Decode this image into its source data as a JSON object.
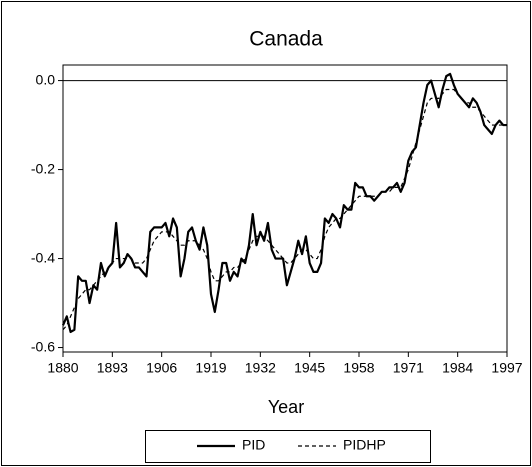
{
  "chart_data": {
    "type": "line",
    "title": "Canada",
    "x_label": "Year",
    "x": [
      1880,
      1881,
      1882,
      1883,
      1884,
      1885,
      1886,
      1887,
      1888,
      1889,
      1890,
      1891,
      1892,
      1893,
      1894,
      1895,
      1896,
      1897,
      1898,
      1899,
      1900,
      1901,
      1902,
      1903,
      1904,
      1905,
      1906,
      1907,
      1908,
      1909,
      1910,
      1911,
      1912,
      1913,
      1914,
      1915,
      1916,
      1917,
      1918,
      1919,
      1920,
      1921,
      1922,
      1923,
      1924,
      1925,
      1926,
      1927,
      1928,
      1929,
      1930,
      1931,
      1932,
      1933,
      1934,
      1935,
      1936,
      1937,
      1938,
      1939,
      1940,
      1941,
      1942,
      1943,
      1944,
      1945,
      1946,
      1947,
      1948,
      1949,
      1950,
      1951,
      1952,
      1953,
      1954,
      1955,
      1956,
      1957,
      1958,
      1959,
      1960,
      1961,
      1962,
      1963,
      1964,
      1965,
      1966,
      1967,
      1968,
      1969,
      1970,
      1971,
      1972,
      1973,
      1974,
      1975,
      1976,
      1977,
      1978,
      1979,
      1980,
      1981,
      1982,
      1983,
      1984,
      1985,
      1986,
      1987,
      1988,
      1989,
      1990,
      1991,
      1992,
      1993,
      1994,
      1995,
      1996,
      1997
    ],
    "series": [
      {
        "name": "PID",
        "color": "#000000",
        "dash": false,
        "values": [
          -0.55,
          -0.53,
          -0.565,
          -0.56,
          -0.44,
          -0.45,
          -0.45,
          -0.5,
          -0.46,
          -0.47,
          -0.41,
          -0.44,
          -0.42,
          -0.41,
          -0.32,
          -0.42,
          -0.41,
          -0.39,
          -0.4,
          -0.42,
          -0.42,
          -0.43,
          -0.44,
          -0.34,
          -0.33,
          -0.33,
          -0.33,
          -0.32,
          -0.35,
          -0.31,
          -0.33,
          -0.44,
          -0.4,
          -0.34,
          -0.33,
          -0.36,
          -0.38,
          -0.33,
          -0.37,
          -0.48,
          -0.52,
          -0.47,
          -0.41,
          -0.41,
          -0.45,
          -0.43,
          -0.44,
          -0.4,
          -0.41,
          -0.37,
          -0.3,
          -0.37,
          -0.34,
          -0.36,
          -0.32,
          -0.38,
          -0.4,
          -0.4,
          -0.4,
          -0.46,
          -0.43,
          -0.4,
          -0.36,
          -0.39,
          -0.35,
          -0.41,
          -0.43,
          -0.43,
          -0.41,
          -0.31,
          -0.32,
          -0.3,
          -0.31,
          -0.33,
          -0.28,
          -0.29,
          -0.29,
          -0.23,
          -0.24,
          -0.24,
          -0.26,
          -0.26,
          -0.27,
          -0.26,
          -0.25,
          -0.25,
          -0.24,
          -0.24,
          -0.23,
          -0.25,
          -0.23,
          -0.18,
          -0.16,
          -0.15,
          -0.1,
          -0.05,
          -0.01,
          0.0,
          -0.03,
          -0.06,
          -0.02,
          0.01,
          0.015,
          -0.01,
          -0.03,
          -0.04,
          -0.05,
          -0.06,
          -0.04,
          -0.05,
          -0.07,
          -0.1,
          -0.11,
          -0.12,
          -0.1,
          -0.09,
          -0.1,
          -0.1
        ]
      },
      {
        "name": "PIDHP",
        "color": "#000000",
        "dash": true,
        "values": [
          -0.56,
          -0.55,
          -0.53,
          -0.51,
          -0.49,
          -0.48,
          -0.47,
          -0.47,
          -0.46,
          -0.45,
          -0.44,
          -0.43,
          -0.42,
          -0.41,
          -0.4,
          -0.4,
          -0.4,
          -0.4,
          -0.4,
          -0.41,
          -0.41,
          -0.41,
          -0.4,
          -0.38,
          -0.36,
          -0.35,
          -0.34,
          -0.34,
          -0.34,
          -0.35,
          -0.36,
          -0.37,
          -0.37,
          -0.36,
          -0.36,
          -0.36,
          -0.37,
          -0.38,
          -0.4,
          -0.43,
          -0.45,
          -0.45,
          -0.44,
          -0.43,
          -0.43,
          -0.42,
          -0.42,
          -0.41,
          -0.4,
          -0.38,
          -0.36,
          -0.35,
          -0.35,
          -0.35,
          -0.36,
          -0.37,
          -0.38,
          -0.39,
          -0.4,
          -0.41,
          -0.41,
          -0.4,
          -0.39,
          -0.38,
          -0.38,
          -0.39,
          -0.4,
          -0.4,
          -0.38,
          -0.35,
          -0.33,
          -0.32,
          -0.31,
          -0.31,
          -0.3,
          -0.29,
          -0.28,
          -0.27,
          -0.26,
          -0.26,
          -0.26,
          -0.26,
          -0.26,
          -0.26,
          -0.25,
          -0.25,
          -0.25,
          -0.24,
          -0.24,
          -0.24,
          -0.22,
          -0.2,
          -0.17,
          -0.14,
          -0.11,
          -0.08,
          -0.05,
          -0.04,
          -0.04,
          -0.04,
          -0.03,
          -0.02,
          -0.02,
          -0.02,
          -0.03,
          -0.04,
          -0.05,
          -0.05,
          -0.06,
          -0.06,
          -0.07,
          -0.08,
          -0.09,
          -0.1,
          -0.1,
          -0.1,
          -0.1,
          -0.1
        ]
      }
    ],
    "xlim": [
      1880,
      1997
    ],
    "xticks": [
      1880,
      1893,
      1906,
      1919,
      1932,
      1945,
      1958,
      1971,
      1984,
      1997
    ],
    "ylim": [
      -0.61,
      0.035
    ],
    "yticks": [
      {
        "value": 0,
        "label": "0.0"
      },
      -0.2,
      -0.4,
      -0.6
    ],
    "hlines": [
      0
    ],
    "legend": "bottom"
  }
}
